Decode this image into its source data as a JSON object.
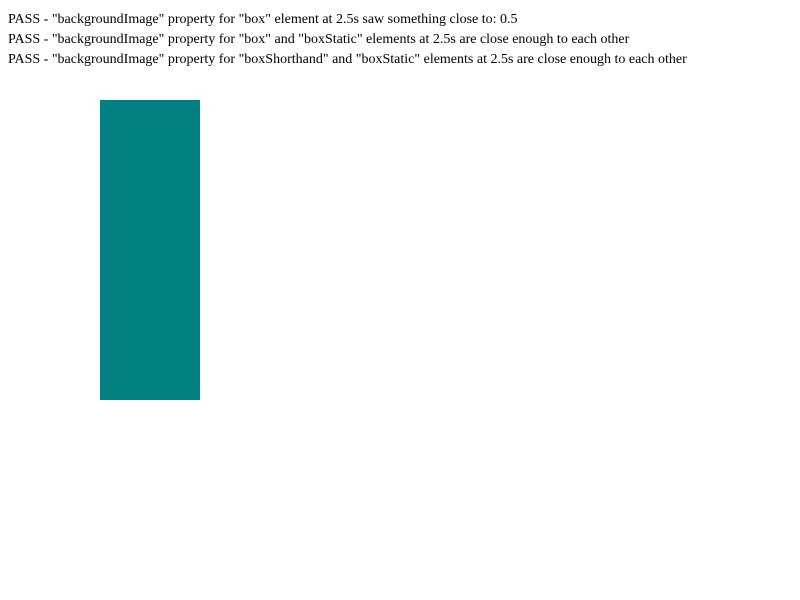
{
  "results": [
    "PASS - \"backgroundImage\" property for \"box\" element at 2.5s saw something close to: 0.5",
    "PASS - \"backgroundImage\" property for \"box\" and \"boxStatic\" elements at 2.5s are close enough to each other",
    "PASS - \"backgroundImage\" property for \"boxShorthand\" and \"boxStatic\" elements at 2.5s are close enough to each other"
  ],
  "colors": {
    "box": "#008080",
    "background": "#ffffff",
    "text": "#000000"
  }
}
